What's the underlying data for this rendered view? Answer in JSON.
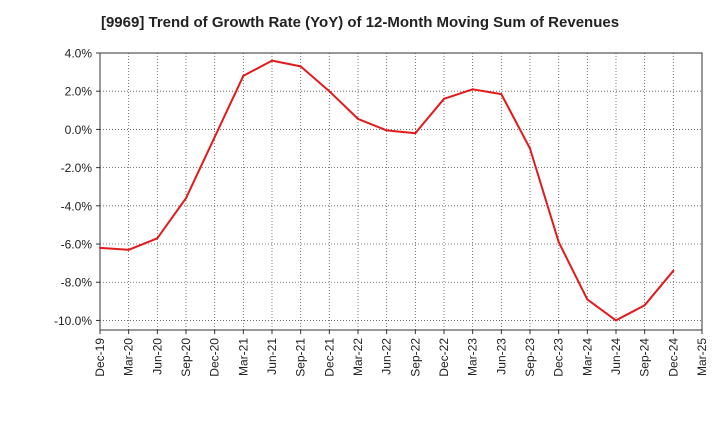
{
  "chart_data": {
    "type": "line",
    "title": "[9969]  Trend of Growth Rate (YoY) of 12-Month Moving Sum of Revenues",
    "xlabel": "",
    "ylabel": "",
    "grid": true,
    "ylim": [
      -10.5,
      4.0
    ],
    "yticks": [
      4.0,
      2.0,
      0.0,
      -2.0,
      -4.0,
      -6.0,
      -8.0,
      -10.0
    ],
    "ytick_labels": [
      "4.0%",
      "2.0%",
      "0.0%",
      "-2.0%",
      "-4.0%",
      "-6.0%",
      "-8.0%",
      "-10.0%"
    ],
    "categories": [
      "Dec-19",
      "Mar-20",
      "Jun-20",
      "Sep-20",
      "Dec-20",
      "Mar-21",
      "Jun-21",
      "Sep-21",
      "Dec-21",
      "Mar-22",
      "Jun-22",
      "Sep-22",
      "Dec-22",
      "Mar-23",
      "Jun-23",
      "Sep-23",
      "Dec-23",
      "Mar-24",
      "Jun-24",
      "Sep-24",
      "Dec-24",
      "Mar-25"
    ],
    "series": [
      {
        "color": "#e31a1c",
        "values": [
          -6.2,
          -6.3,
          -5.7,
          -3.6,
          -0.4,
          2.8,
          3.6,
          3.3,
          2.0,
          0.55,
          -0.05,
          -0.2,
          1.6,
          2.1,
          1.85,
          -1.0,
          -5.9,
          -8.9,
          -10.0,
          -9.2,
          -7.4,
          null
        ]
      }
    ]
  }
}
